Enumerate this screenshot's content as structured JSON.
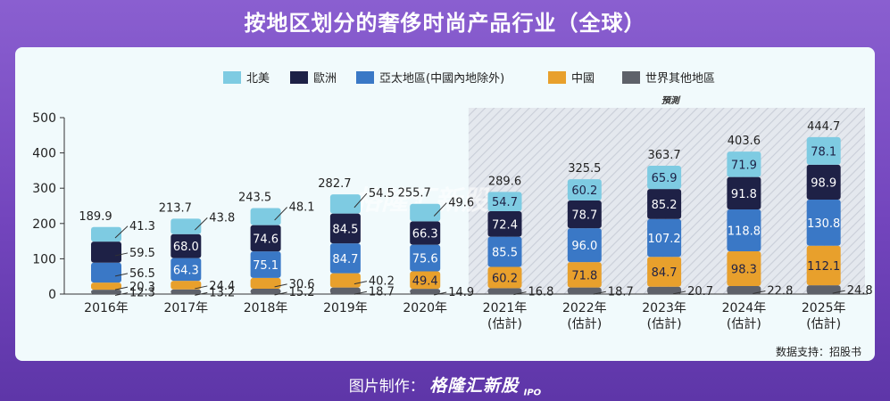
{
  "title": "按地区划分的奢侈时尚产品行业（全球）",
  "footer": {
    "prefix": "图片制作：",
    "brand": "格隆汇新股",
    "brand_suffix": "IPO"
  },
  "source": "数据支持：招股书",
  "watermark": "格隆汇新股",
  "forecast_label": "預測",
  "colors": {
    "北美": "#7ecbe2",
    "歐洲": "#1e2146",
    "亞太地區(中國內地除外)": "#3a78c6",
    "中國": "#e8a02c",
    "世界其他地區": "#5e6169",
    "forecast_bg": "#e3e7ee"
  },
  "chart_data": {
    "type": "bar",
    "stacked": true,
    "title": "按地区划分的奢侈时尚产品行业（全球）",
    "categories": [
      "2016年",
      "2017年",
      "2018年",
      "2019年",
      "2020年",
      "2021年\n(估計)",
      "2022年\n(估計)",
      "2023年\n(估計)",
      "2024年\n(估計)",
      "2025年\n(估計)"
    ],
    "ylim": [
      0,
      500
    ],
    "yticks": [
      0,
      100,
      200,
      300,
      400,
      500
    ],
    "forecast_start_index": 5,
    "legend_position": "top-center",
    "series": [
      {
        "name": "世界其他地區",
        "values": [
          12.3,
          13.2,
          15.2,
          18.7,
          14.9,
          16.8,
          18.7,
          20.7,
          22.8,
          24.8
        ]
      },
      {
        "name": "中國",
        "values": [
          20.3,
          24.4,
          30.6,
          40.2,
          49.4,
          60.2,
          71.8,
          84.7,
          98.3,
          112.1
        ]
      },
      {
        "name": "亞太地區(中國內地除外)",
        "values": [
          56.5,
          64.3,
          75.1,
          84.7,
          75.6,
          85.5,
          96.0,
          107.2,
          118.8,
          130.8
        ]
      },
      {
        "name": "歐洲",
        "values": [
          59.5,
          68.0,
          74.6,
          84.5,
          66.3,
          72.4,
          78.7,
          85.2,
          91.8,
          98.9
        ]
      },
      {
        "name": "北美",
        "values": [
          41.3,
          43.8,
          48.1,
          54.5,
          49.6,
          54.7,
          60.2,
          65.9,
          71.9,
          78.1
        ]
      }
    ],
    "totals": [
      189.9,
      213.7,
      243.5,
      282.7,
      255.7,
      289.6,
      325.5,
      363.7,
      403.6,
      444.7
    ]
  }
}
